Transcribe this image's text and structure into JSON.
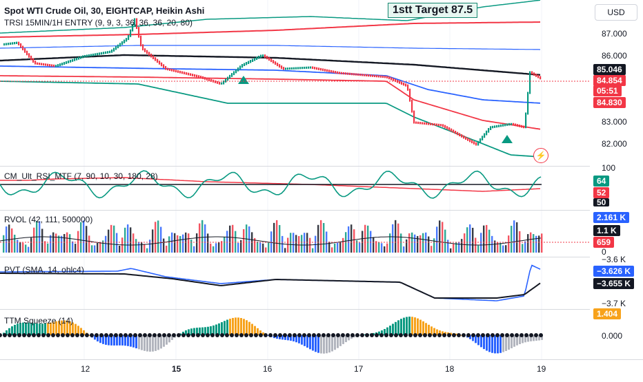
{
  "header": {
    "title": "Spot WTI Crude Oil, 30, EIGHTCAP, Heikin Ashi",
    "indicator": "TRSI 15MIN/1H ENTRY (9, 9, 3, 36, 36, 36, 20, 80)"
  },
  "annotation": {
    "label": "1stt Target 87.5"
  },
  "currency_button": "USD",
  "price_axis": {
    "ticks": [
      "87.000",
      "86.000",
      "83.000",
      "82.000"
    ],
    "badges": [
      {
        "text": "85.046",
        "bg": "#131722"
      },
      {
        "text": "84.854",
        "bg": "#f23645"
      },
      {
        "text": "05:51",
        "bg": "#f23645"
      },
      {
        "text": "84.830",
        "bg": "#f23645"
      }
    ]
  },
  "panes": {
    "rsi": {
      "label": "CM_Ult_RSI_MTF (7, 90, 10, 30, 180, 28)",
      "axis_top": "100",
      "badges": [
        {
          "text": "64",
          "bg": "#089981"
        },
        {
          "text": "52",
          "bg": "#f23645"
        },
        {
          "text": "50",
          "bg": "#131722"
        }
      ]
    },
    "rvol": {
      "label": "RVOL (42, 111, 500000)",
      "axis_zero": "0",
      "badges": [
        {
          "text": "2.161 K",
          "bg": "#2962ff"
        },
        {
          "text": "1.1 K",
          "bg": "#131722"
        },
        {
          "text": "659",
          "bg": "#f23645"
        }
      ]
    },
    "pvt": {
      "label": "PVT (SMA, 14, ohlc4)",
      "ticks": [
        "−3.6 K",
        "−3.7 K"
      ],
      "badges": [
        {
          "text": "−3.626 K",
          "bg": "#2962ff"
        },
        {
          "text": "−3.655 K",
          "bg": "#131722"
        }
      ]
    },
    "ttm": {
      "label": "TTM Squeeze (14)",
      "ticks": [
        "0.000"
      ],
      "badges": [
        {
          "text": "1.404",
          "bg": "#f7a21b"
        }
      ]
    }
  },
  "time_axis": [
    "12",
    "15",
    "16",
    "17",
    "18",
    "19"
  ],
  "colors": {
    "up": "#089981",
    "down": "#f23645",
    "blue": "#2962ff",
    "black": "#131722",
    "orange": "#f7a21b",
    "gray": "#b2b5be"
  }
}
